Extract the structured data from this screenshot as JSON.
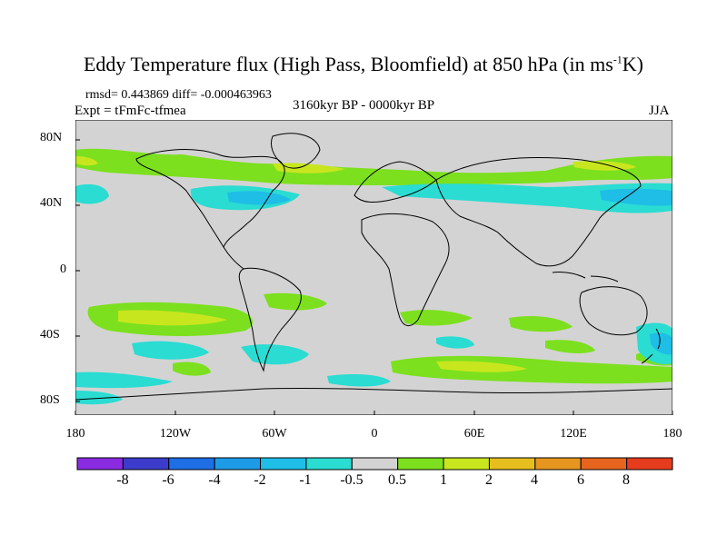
{
  "title_main": "Eddy Temperature flux (High Pass, Bloomfield) at 850 hPa (in ms",
  "title_sup": "-1",
  "title_end": "K)",
  "stats": "rmsd= 0.443869 diff= -0.000463963",
  "expt": "Expt = tFmFc-tfmea",
  "period": "3160kyr BP - 0000kyr BP",
  "season": "JJA",
  "y_ticks": [
    "80N",
    "40N",
    "0",
    "40S",
    "80S"
  ],
  "x_ticks": [
    "180",
    "120W",
    "60W",
    "0",
    "60E",
    "120E",
    "180"
  ],
  "colorbar": {
    "labels": [
      "-8",
      "-6",
      "-4",
      "-2",
      "-1",
      "-0.5",
      "0.5",
      "1",
      "2",
      "4",
      "6",
      "8"
    ],
    "colors": [
      "#8a2be2",
      "#3c3ccc",
      "#1e6ee6",
      "#1e9be6",
      "#1ebee6",
      "#2adcd2",
      "#d3d3d3",
      "#7ce01e",
      "#c8e61e",
      "#e6be1e",
      "#e6961e",
      "#e6641e",
      "#e63c1e"
    ]
  },
  "map_colors": {
    "ocean": "#d3d3d3",
    "pos_light": "#7ce01e",
    "pos_mid": "#c8e61e",
    "neg_light": "#2adcd2",
    "neg_mid": "#1ebee6",
    "coast": "#000000"
  }
}
